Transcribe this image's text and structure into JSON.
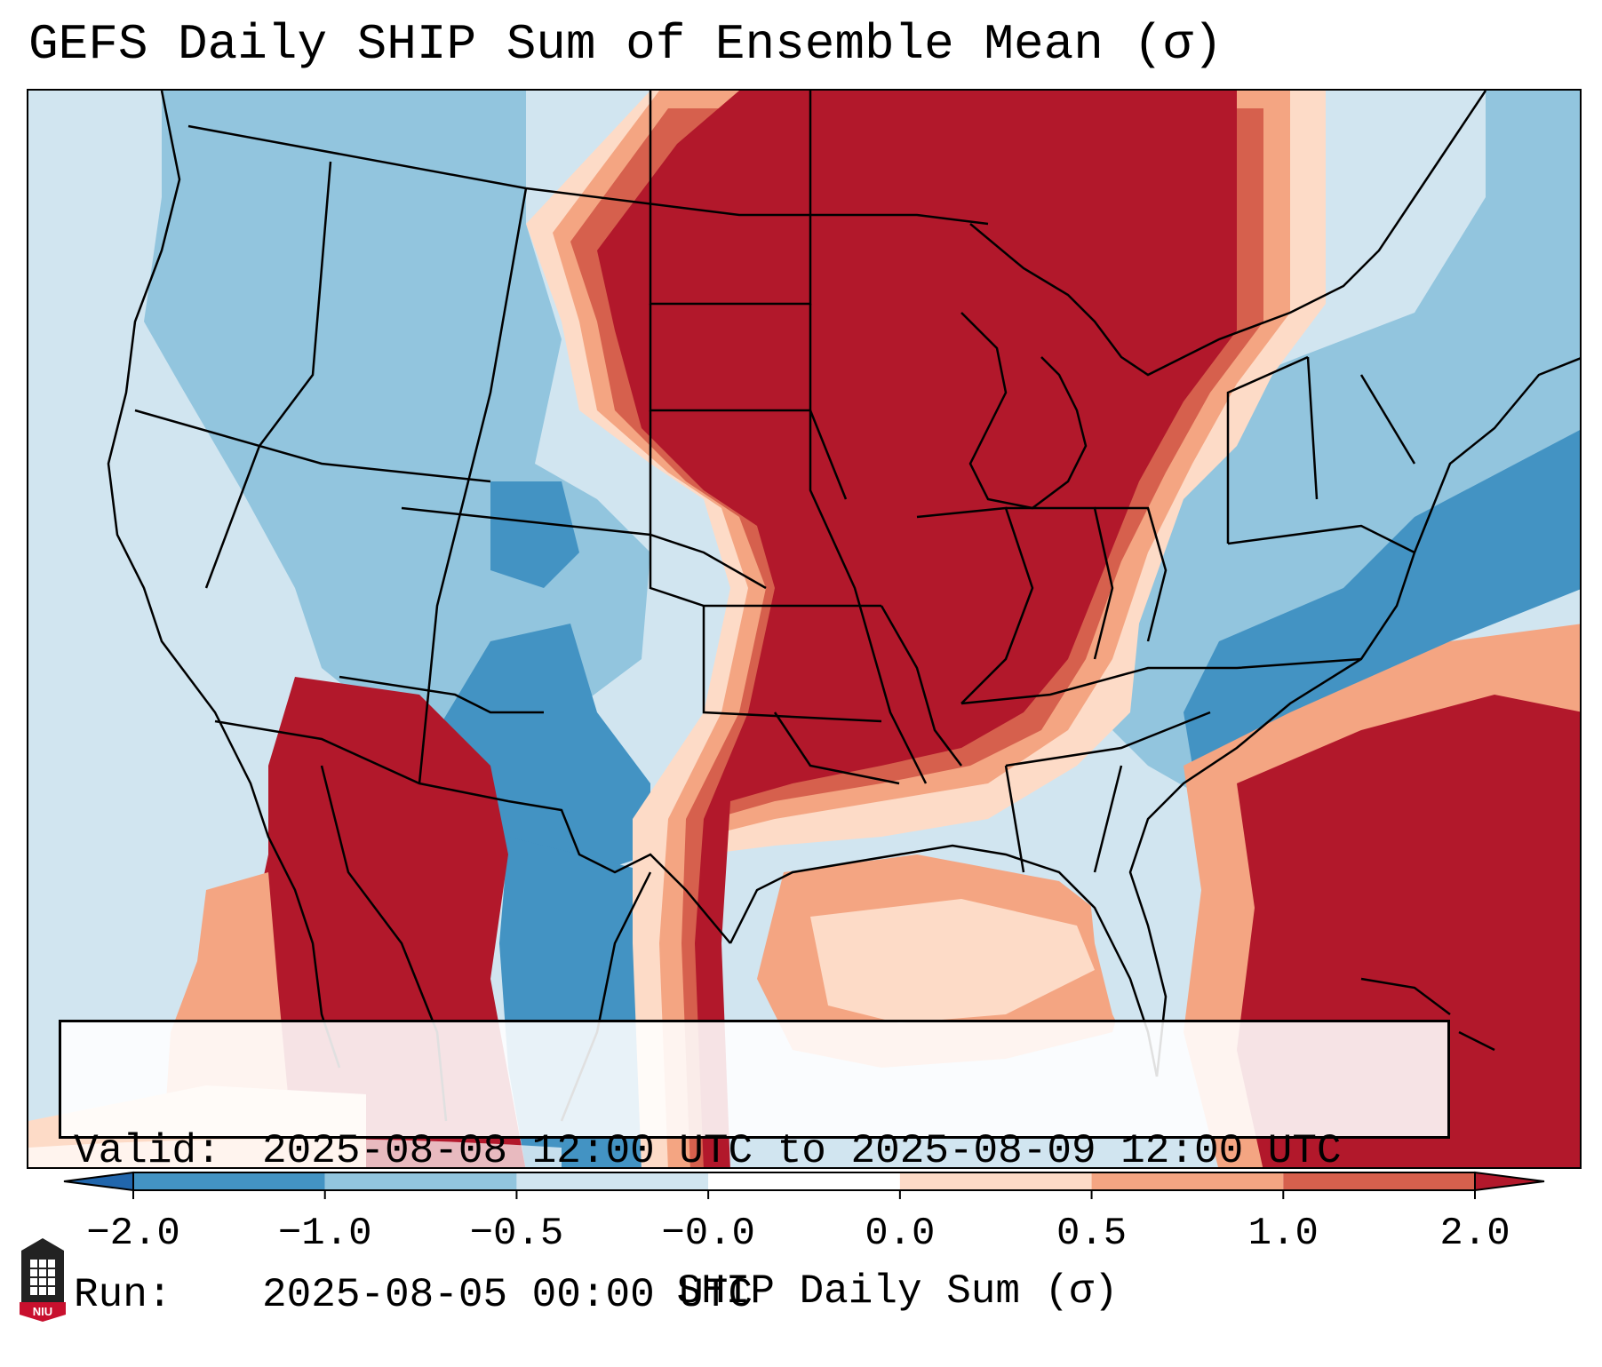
{
  "title": "GEFS Daily SHIP Sum of Ensemble Mean (σ)",
  "info": {
    "valid_label": "Valid:",
    "valid_value": "2025-08-08 12:00 UTC to 2025-08-09 12:00 UTC",
    "run_label": "Run:",
    "run_value": "2025-08-05 00:00 UTC"
  },
  "colorbar": {
    "label": "SHIP Daily Sum (σ)",
    "ticks": [
      "−2.0",
      "−1.0",
      "−0.5",
      "−0.0",
      "0.0",
      "0.5",
      "1.0",
      "2.0"
    ],
    "colors": [
      "#4393c3",
      "#92c5de",
      "#d1e5f0",
      "#fddbc7",
      "#f4a582",
      "#d6604d"
    ],
    "extend_low_color": "#2166ac",
    "extend_high_color": "#b2182b"
  },
  "logo": {
    "text": "NIU"
  }
}
